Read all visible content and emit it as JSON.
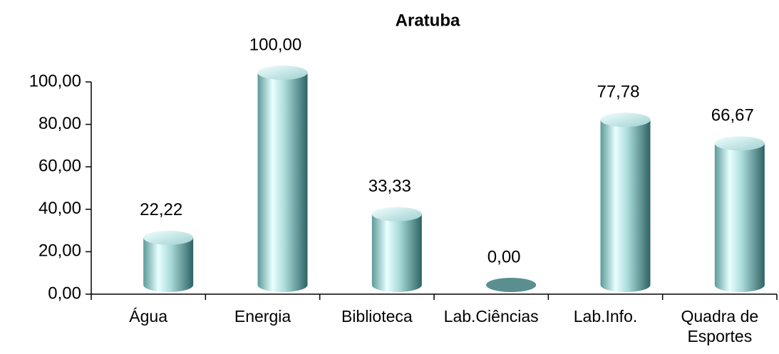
{
  "chart_data": {
    "type": "bar",
    "title": "Aratuba",
    "categories": [
      "Água",
      "Energia",
      "Biblioteca",
      "Lab.Ciências",
      "Lab.Info.",
      "Quadra de Esportes"
    ],
    "values": [
      22.22,
      100,
      33.33,
      0,
      77.78,
      66.67
    ],
    "value_labels": [
      "22,22",
      "100,00",
      "33,33",
      "0,00",
      "77,78",
      "66,67"
    ],
    "color": "#8fc9c9",
    "ylim": [
      0,
      100
    ],
    "yticks": [
      {
        "value": 0,
        "label": "0,00"
      },
      {
        "value": 20,
        "label": "20,00"
      },
      {
        "value": 40,
        "label": "40,00"
      },
      {
        "value": 60,
        "label": "60,00"
      },
      {
        "value": 80,
        "label": "80,00"
      },
      {
        "value": 100,
        "label": "100,00"
      }
    ],
    "grid": false
  }
}
